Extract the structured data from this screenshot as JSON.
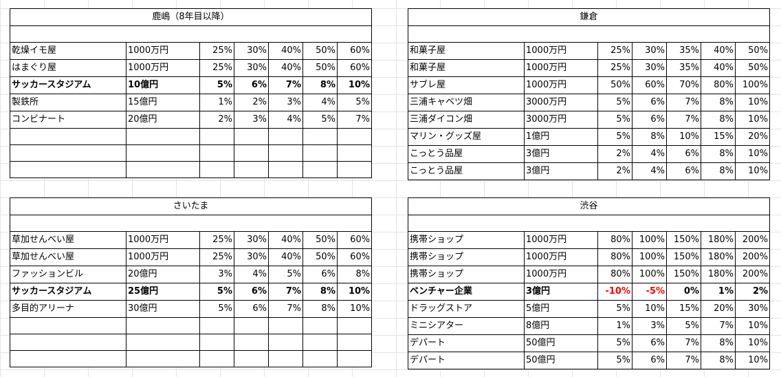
{
  "colors": {
    "negative": "#ff0000",
    "gridline": "#e3e3e3",
    "border": "#000000"
  },
  "tables": [
    {
      "id": "tbl-kashima",
      "title": "鹿嶋（8年目以降）",
      "rows": [
        {
          "name": "乾燥イモ屋",
          "price": "1000万円",
          "vals": [
            "25%",
            "30%",
            "40%",
            "50%",
            "60%"
          ]
        },
        {
          "name": "はまぐり屋",
          "price": "1000万円",
          "vals": [
            "25%",
            "30%",
            "40%",
            "50%",
            "60%"
          ]
        },
        {
          "name": "サッカースタジアム",
          "price": "10億円",
          "vals": [
            "5%",
            "6%",
            "7%",
            "8%",
            "10%"
          ],
          "bold": true
        },
        {
          "name": "製鉄所",
          "price": "15億円",
          "vals": [
            "1%",
            "2%",
            "3%",
            "4%",
            "5%"
          ]
        },
        {
          "name": "コンビナート",
          "price": "20億円",
          "vals": [
            "2%",
            "3%",
            "4%",
            "5%",
            "7%"
          ]
        },
        {
          "name": "",
          "price": "",
          "vals": [
            "",
            "",
            "",
            "",
            ""
          ]
        },
        {
          "name": "",
          "price": "",
          "vals": [
            "",
            "",
            "",
            "",
            ""
          ]
        },
        {
          "name": "",
          "price": "",
          "vals": [
            "",
            "",
            "",
            "",
            ""
          ]
        }
      ]
    },
    {
      "id": "tbl-kamakura",
      "title": "鎌倉",
      "rows": [
        {
          "name": "和菓子屋",
          "price": "1000万円",
          "vals": [
            "25%",
            "30%",
            "35%",
            "40%",
            "50%"
          ]
        },
        {
          "name": "和菓子屋",
          "price": "1000万円",
          "vals": [
            "25%",
            "30%",
            "35%",
            "40%",
            "50%"
          ]
        },
        {
          "name": "サブレ屋",
          "price": "1000万円",
          "vals": [
            "50%",
            "60%",
            "70%",
            "80%",
            "100%"
          ]
        },
        {
          "name": "三浦キャベツ畑",
          "price": "3000万円",
          "vals": [
            "5%",
            "6%",
            "7%",
            "8%",
            "10%"
          ]
        },
        {
          "name": "三浦ダイコン畑",
          "price": "3000万円",
          "vals": [
            "5%",
            "6%",
            "7%",
            "8%",
            "10%"
          ]
        },
        {
          "name": "マリン・グッズ屋",
          "price": "1億円",
          "vals": [
            "5%",
            "8%",
            "10%",
            "15%",
            "20%"
          ]
        },
        {
          "name": "こっとう品屋",
          "price": "3億円",
          "vals": [
            "2%",
            "4%",
            "6%",
            "8%",
            "10%"
          ]
        },
        {
          "name": "こっとう品屋",
          "price": "3億円",
          "vals": [
            "2%",
            "4%",
            "6%",
            "8%",
            "10%"
          ]
        }
      ]
    },
    {
      "id": "tbl-saitama",
      "title": "さいたま",
      "rows": [
        {
          "name": "草加せんべい屋",
          "price": "1000万円",
          "vals": [
            "25%",
            "30%",
            "40%",
            "50%",
            "60%"
          ]
        },
        {
          "name": "草加せんべい屋",
          "price": "1000万円",
          "vals": [
            "25%",
            "30%",
            "40%",
            "50%",
            "60%"
          ]
        },
        {
          "name": "ファッションビル",
          "price": "20億円",
          "vals": [
            "3%",
            "4%",
            "5%",
            "6%",
            "8%"
          ]
        },
        {
          "name": "サッカースタジアム",
          "price": "25億円",
          "vals": [
            "5%",
            "6%",
            "7%",
            "8%",
            "10%"
          ],
          "bold": true
        },
        {
          "name": "多目的アリーナ",
          "price": "30億円",
          "vals": [
            "5%",
            "6%",
            "7%",
            "8%",
            "10%"
          ]
        },
        {
          "name": "",
          "price": "",
          "vals": [
            "",
            "",
            "",
            "",
            ""
          ]
        },
        {
          "name": "",
          "price": "",
          "vals": [
            "",
            "",
            "",
            "",
            ""
          ]
        },
        {
          "name": "",
          "price": "",
          "vals": [
            "",
            "",
            "",
            "",
            ""
          ]
        }
      ]
    },
    {
      "id": "tbl-shibuya",
      "title": "渋谷",
      "rows": [
        {
          "name": "携帯ショップ",
          "price": "1000万円",
          "vals": [
            "80%",
            "100%",
            "150%",
            "180%",
            "200%"
          ]
        },
        {
          "name": "携帯ショップ",
          "price": "1000万円",
          "vals": [
            "80%",
            "100%",
            "150%",
            "180%",
            "200%"
          ]
        },
        {
          "name": "携帯ショップ",
          "price": "1000万円",
          "vals": [
            "80%",
            "100%",
            "150%",
            "180%",
            "200%"
          ]
        },
        {
          "name": "ベンチャー企業",
          "price": "3億円",
          "vals": [
            "-10%",
            "-5%",
            "0%",
            "1%",
            "2%"
          ],
          "bold": true
        },
        {
          "name": "ドラッグストア",
          "price": "5億円",
          "vals": [
            "5%",
            "10%",
            "15%",
            "20%",
            "30%"
          ]
        },
        {
          "name": "ミニシアター",
          "price": "8億円",
          "vals": [
            "1%",
            "3%",
            "5%",
            "7%",
            "10%"
          ]
        },
        {
          "name": "デパート",
          "price": "50億円",
          "vals": [
            "5%",
            "6%",
            "7%",
            "8%",
            "10%"
          ]
        },
        {
          "name": "デパート",
          "price": "50億円",
          "vals": [
            "5%",
            "6%",
            "7%",
            "8%",
            "10%"
          ]
        }
      ]
    }
  ]
}
